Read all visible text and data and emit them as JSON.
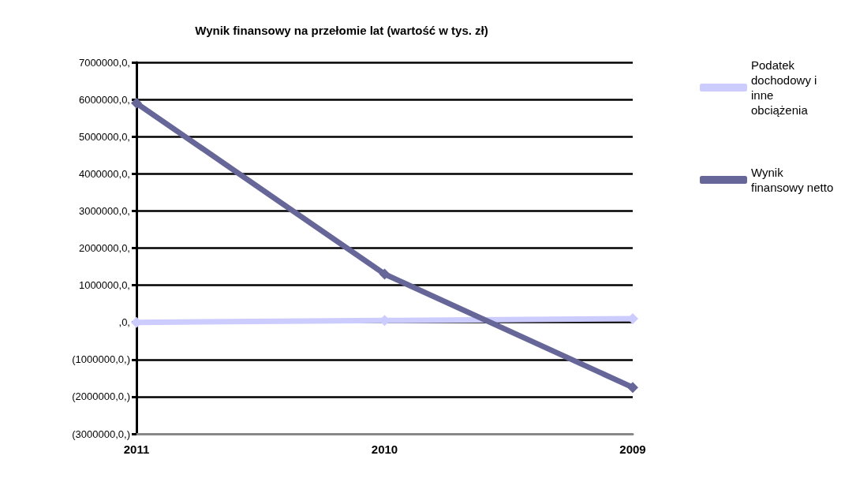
{
  "chart_data": {
    "type": "line",
    "title": "Wynik finansowy na przełomie lat (wartość w tys. zł)",
    "categories": [
      "2011",
      "2010",
      "2009"
    ],
    "series": [
      {
        "name": "Podatek dochodowy i inne obciążenia",
        "color": "#ccccff",
        "values": [
          0,
          50000,
          100000
        ]
      },
      {
        "name": "Wynik finansowy netto",
        "color": "#666699",
        "values": [
          5900000,
          1300000,
          -1750000
        ]
      }
    ],
    "ylim": [
      -3000000,
      7000000
    ],
    "yticks": [
      {
        "value": -3000000,
        "label": "(3000000,0,)"
      },
      {
        "value": -2000000,
        "label": "(2000000,0,)"
      },
      {
        "value": -1000000,
        "label": "(1000000,0,)"
      },
      {
        "value": 0,
        "label": ",0,"
      },
      {
        "value": 1000000,
        "label": "1000000,0,"
      },
      {
        "value": 2000000,
        "label": "2000000,0,"
      },
      {
        "value": 3000000,
        "label": "3000000,0,"
      },
      {
        "value": 4000000,
        "label": "4000000,0,"
      },
      {
        "value": 5000000,
        "label": "5000000,0,"
      },
      {
        "value": 6000000,
        "label": "6000000,0,"
      },
      {
        "value": 7000000,
        "label": "7000000,0,"
      }
    ],
    "grid": "y",
    "legend": "right",
    "marker": "diamond",
    "line_style": "solid"
  }
}
